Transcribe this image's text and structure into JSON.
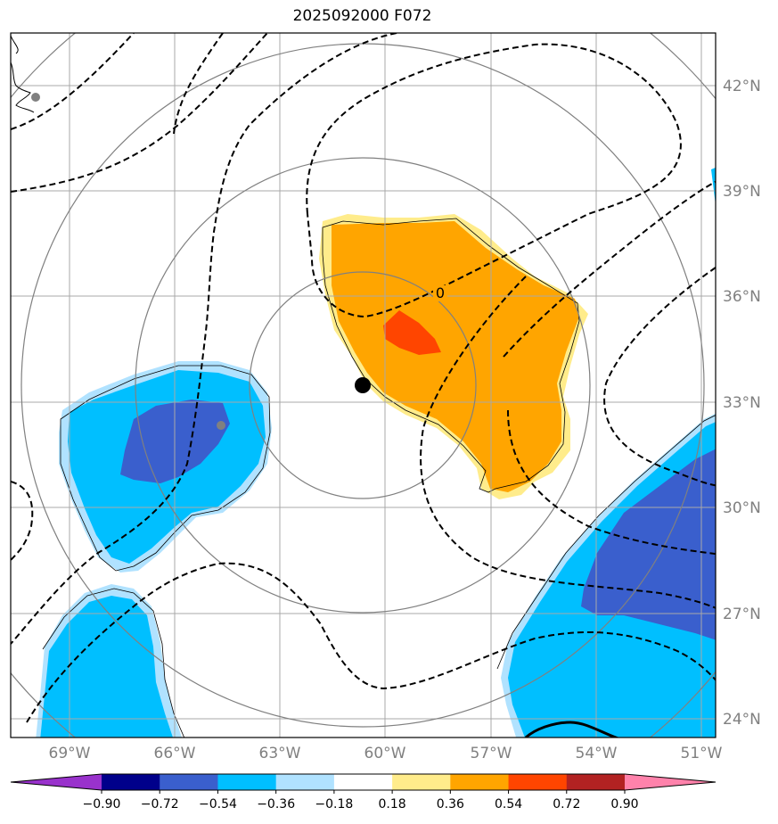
{
  "title": "2025092000 F072",
  "lon_labels": [
    "69°W",
    "66°W",
    "63°W",
    "60°W",
    "57°W",
    "54°W",
    "51°W"
  ],
  "lat_labels": [
    "42°N",
    "39°N",
    "36°N",
    "33°N",
    "30°N",
    "27°N",
    "24°N"
  ],
  "contour_label": "0",
  "colorbar": {
    "labels": [
      "−0.90",
      "−0.72",
      "−0.54",
      "−0.36",
      "−0.18",
      "0.18",
      "0.36",
      "0.54",
      "0.72",
      "0.90"
    ],
    "colors": [
      "#9932cc",
      "#00008b",
      "#3a5fcd",
      "#00bfff",
      "#b0e2ff",
      "#ffffff",
      "#ffec8b",
      "#ffa500",
      "#ff4500",
      "#b22222",
      "#ff82ab"
    ]
  },
  "fill_colors": {
    "light_blue": "#b0e2ff",
    "blue": "#00bfff",
    "dark_blue": "#3a5fcd",
    "light_yellow": "#ffec8b",
    "orange": "#ffa500",
    "red_orange": "#ff4500"
  }
}
